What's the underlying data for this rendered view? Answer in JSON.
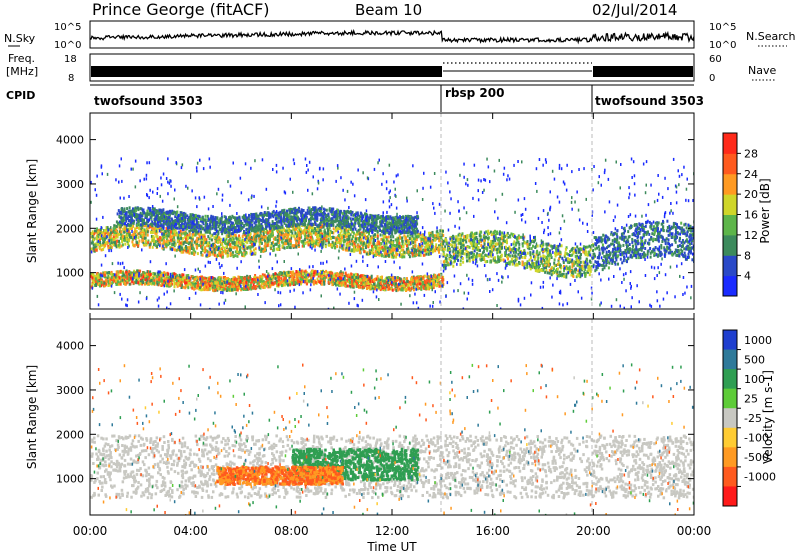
{
  "header": {
    "station": "Prince George (fitACF)",
    "beam": "Beam 10",
    "date": "02/Jul/2014"
  },
  "noise_panel": {
    "left_label": "N.Sky",
    "right_label": "N.Search",
    "left_ticks": [
      "10^5",
      "10^0"
    ],
    "right_ticks": [
      "10^5",
      "10^0"
    ]
  },
  "freq_panel": {
    "left_label_top": "Freq.",
    "left_label_bottom": "[MHz]",
    "right_label": "Nave",
    "left_ticks": [
      "18",
      "8"
    ],
    "right_ticks": [
      "60",
      "0"
    ]
  },
  "cpid": {
    "label": "CPID",
    "segments": [
      {
        "name": "twofsound 3503",
        "start_h": 0,
        "end_h": 14
      },
      {
        "name": "rbsp 200",
        "start_h": 14,
        "end_h": 20
      },
      {
        "name": "twofsound 3503",
        "start_h": 20,
        "end_h": 24
      }
    ]
  },
  "time_axis": {
    "label": "Time UT",
    "ticks": [
      "00:00",
      "04:00",
      "08:00",
      "12:00",
      "16:00",
      "20:00",
      "00:00"
    ]
  },
  "chart_data": [
    {
      "type": "heatmap",
      "ylabel": "Slant Range [km]",
      "xlim": [
        0,
        24
      ],
      "ylim": [
        180,
        4600
      ],
      "yticks": [
        "1000",
        "2000",
        "3000",
        "4000"
      ],
      "colorbar": {
        "label": "Power [dB]",
        "ticks": [
          "4",
          "8",
          "12",
          "16",
          "20",
          "24",
          "28"
        ],
        "colors": [
          "#1a2bff",
          "#2a49c8",
          "#3c8a5c",
          "#5db54a",
          "#cfd62a",
          "#ff9a22",
          "#ff5a1e",
          "#ff2a1a"
        ]
      },
      "features": [
        {
          "band": "E-region scatter",
          "time_h": [
            0,
            14
          ],
          "range_km": [
            700,
            1000
          ],
          "peak_db": 28
        },
        {
          "band": "main band",
          "time_h": [
            0,
            14
          ],
          "range_km": [
            1500,
            2000
          ],
          "peak_db": 24
        },
        {
          "band": "upper band",
          "time_h": [
            1,
            13
          ],
          "range_km": [
            2000,
            2400
          ],
          "peak_db": 12
        },
        {
          "band": "descending band",
          "time_h": [
            14,
            20
          ],
          "range_km": [
            1100,
            1800
          ],
          "peak_db": 20
        },
        {
          "band": "late band",
          "time_h": [
            20,
            24
          ],
          "range_km": [
            1200,
            2000
          ],
          "peak_db": 12
        }
      ]
    },
    {
      "type": "heatmap",
      "ylabel": "Slant Range [km]",
      "xlim": [
        0,
        24
      ],
      "ylim": [
        180,
        4600
      ],
      "yticks": [
        "1000",
        "2000",
        "3000",
        "4000"
      ],
      "colorbar": {
        "label": "Velocity [m s-1]",
        "ticks": [
          "1000",
          "500",
          "100",
          "25",
          "-25",
          "-100",
          "-500",
          "-1000"
        ],
        "colors": [
          "#1f3fcf",
          "#2f7a9a",
          "#2f9e52",
          "#5ecc38",
          "#c8c8c2",
          "#ffcc33",
          "#ff9a22",
          "#ff5a1e",
          "#ff1a1a"
        ]
      },
      "features": [
        {
          "band": "ground scatter",
          "time_h": [
            0,
            24
          ],
          "range_km": [
            600,
            2000
          ],
          "velocity": 0
        },
        {
          "band": "approaching echoes",
          "time_h": [
            8,
            13
          ],
          "range_km": [
            1000,
            1700
          ],
          "velocity": 150
        },
        {
          "band": "receding echoes",
          "time_h": [
            5,
            10
          ],
          "range_km": [
            900,
            1300
          ],
          "velocity": -300
        }
      ]
    }
  ]
}
